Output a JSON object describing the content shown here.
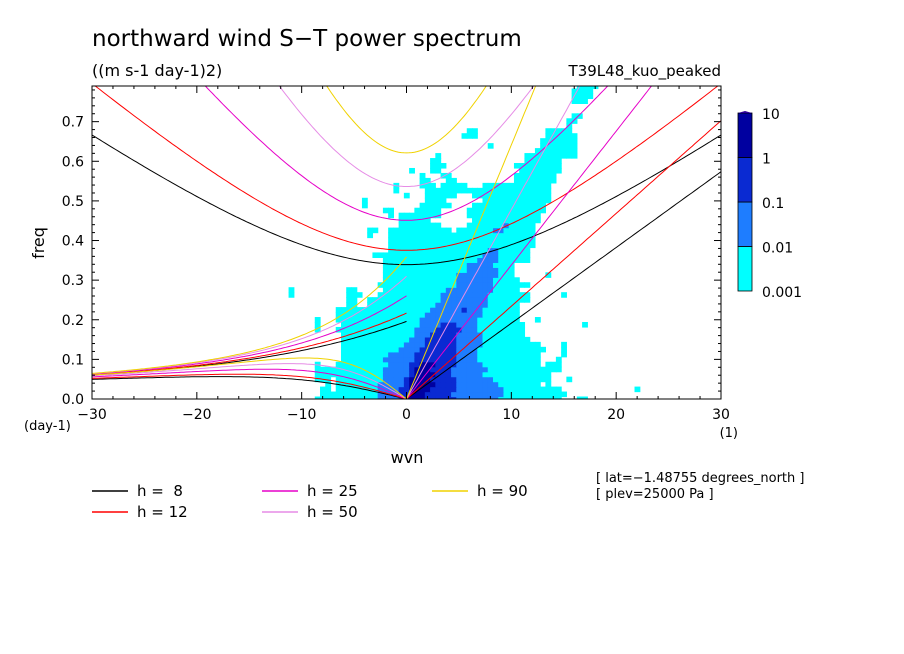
{
  "chart_data": {
    "type": "heatmap",
    "title": "northward wind S−T power spectrum",
    "subtitle": "((m s-1 day-1)2)",
    "run_label": "T39L48_kuo_peaked",
    "xlabel": "wvn",
    "x_unit": "(1)",
    "ylabel": "freq",
    "y_unit": "(day-1)",
    "xlim": [
      -30,
      30
    ],
    "ylim": [
      0,
      0.79
    ],
    "x_ticks": [
      "−30",
      "−20",
      "−10",
      "0",
      "10",
      "20",
      "30"
    ],
    "x_tick_values": [
      -30,
      -20,
      -10,
      0,
      10,
      20,
      30
    ],
    "y_ticks": [
      "0.0",
      "0.1",
      "0.2",
      "0.3",
      "0.4",
      "0.5",
      "0.6",
      "0.7"
    ],
    "y_tick_values": [
      0,
      0.1,
      0.2,
      0.3,
      0.4,
      0.5,
      0.6,
      0.7
    ],
    "colorbar": {
      "levels": [
        0.001,
        0.01,
        0.1,
        1,
        10
      ],
      "labels": [
        "0.001",
        "0.01",
        "0.1",
        "1",
        "10"
      ],
      "colors": [
        "#00ffff",
        "#1e7dff",
        "#0a2ad2",
        "#0000a0"
      ],
      "top_color": "#2d0096"
    },
    "dispersion_curves": [
      {
        "name": "h =  8",
        "h": 8,
        "color": "#000000"
      },
      {
        "name": "h = 12",
        "h": 12,
        "color": "#ff0000"
      },
      {
        "name": "h = 25",
        "h": 25,
        "color": "#e600c8"
      },
      {
        "name": "h = 50",
        "h": 50,
        "color": "#e68ce6"
      },
      {
        "name": "h = 90",
        "h": 90,
        "color": "#f0d200"
      }
    ],
    "legend_placement": "bottom-left",
    "grid": false
  },
  "annotations": {
    "lat": "[ lat=−1.48755 degrees_north ]",
    "plev": "[ plev=25000 Pa ]"
  }
}
